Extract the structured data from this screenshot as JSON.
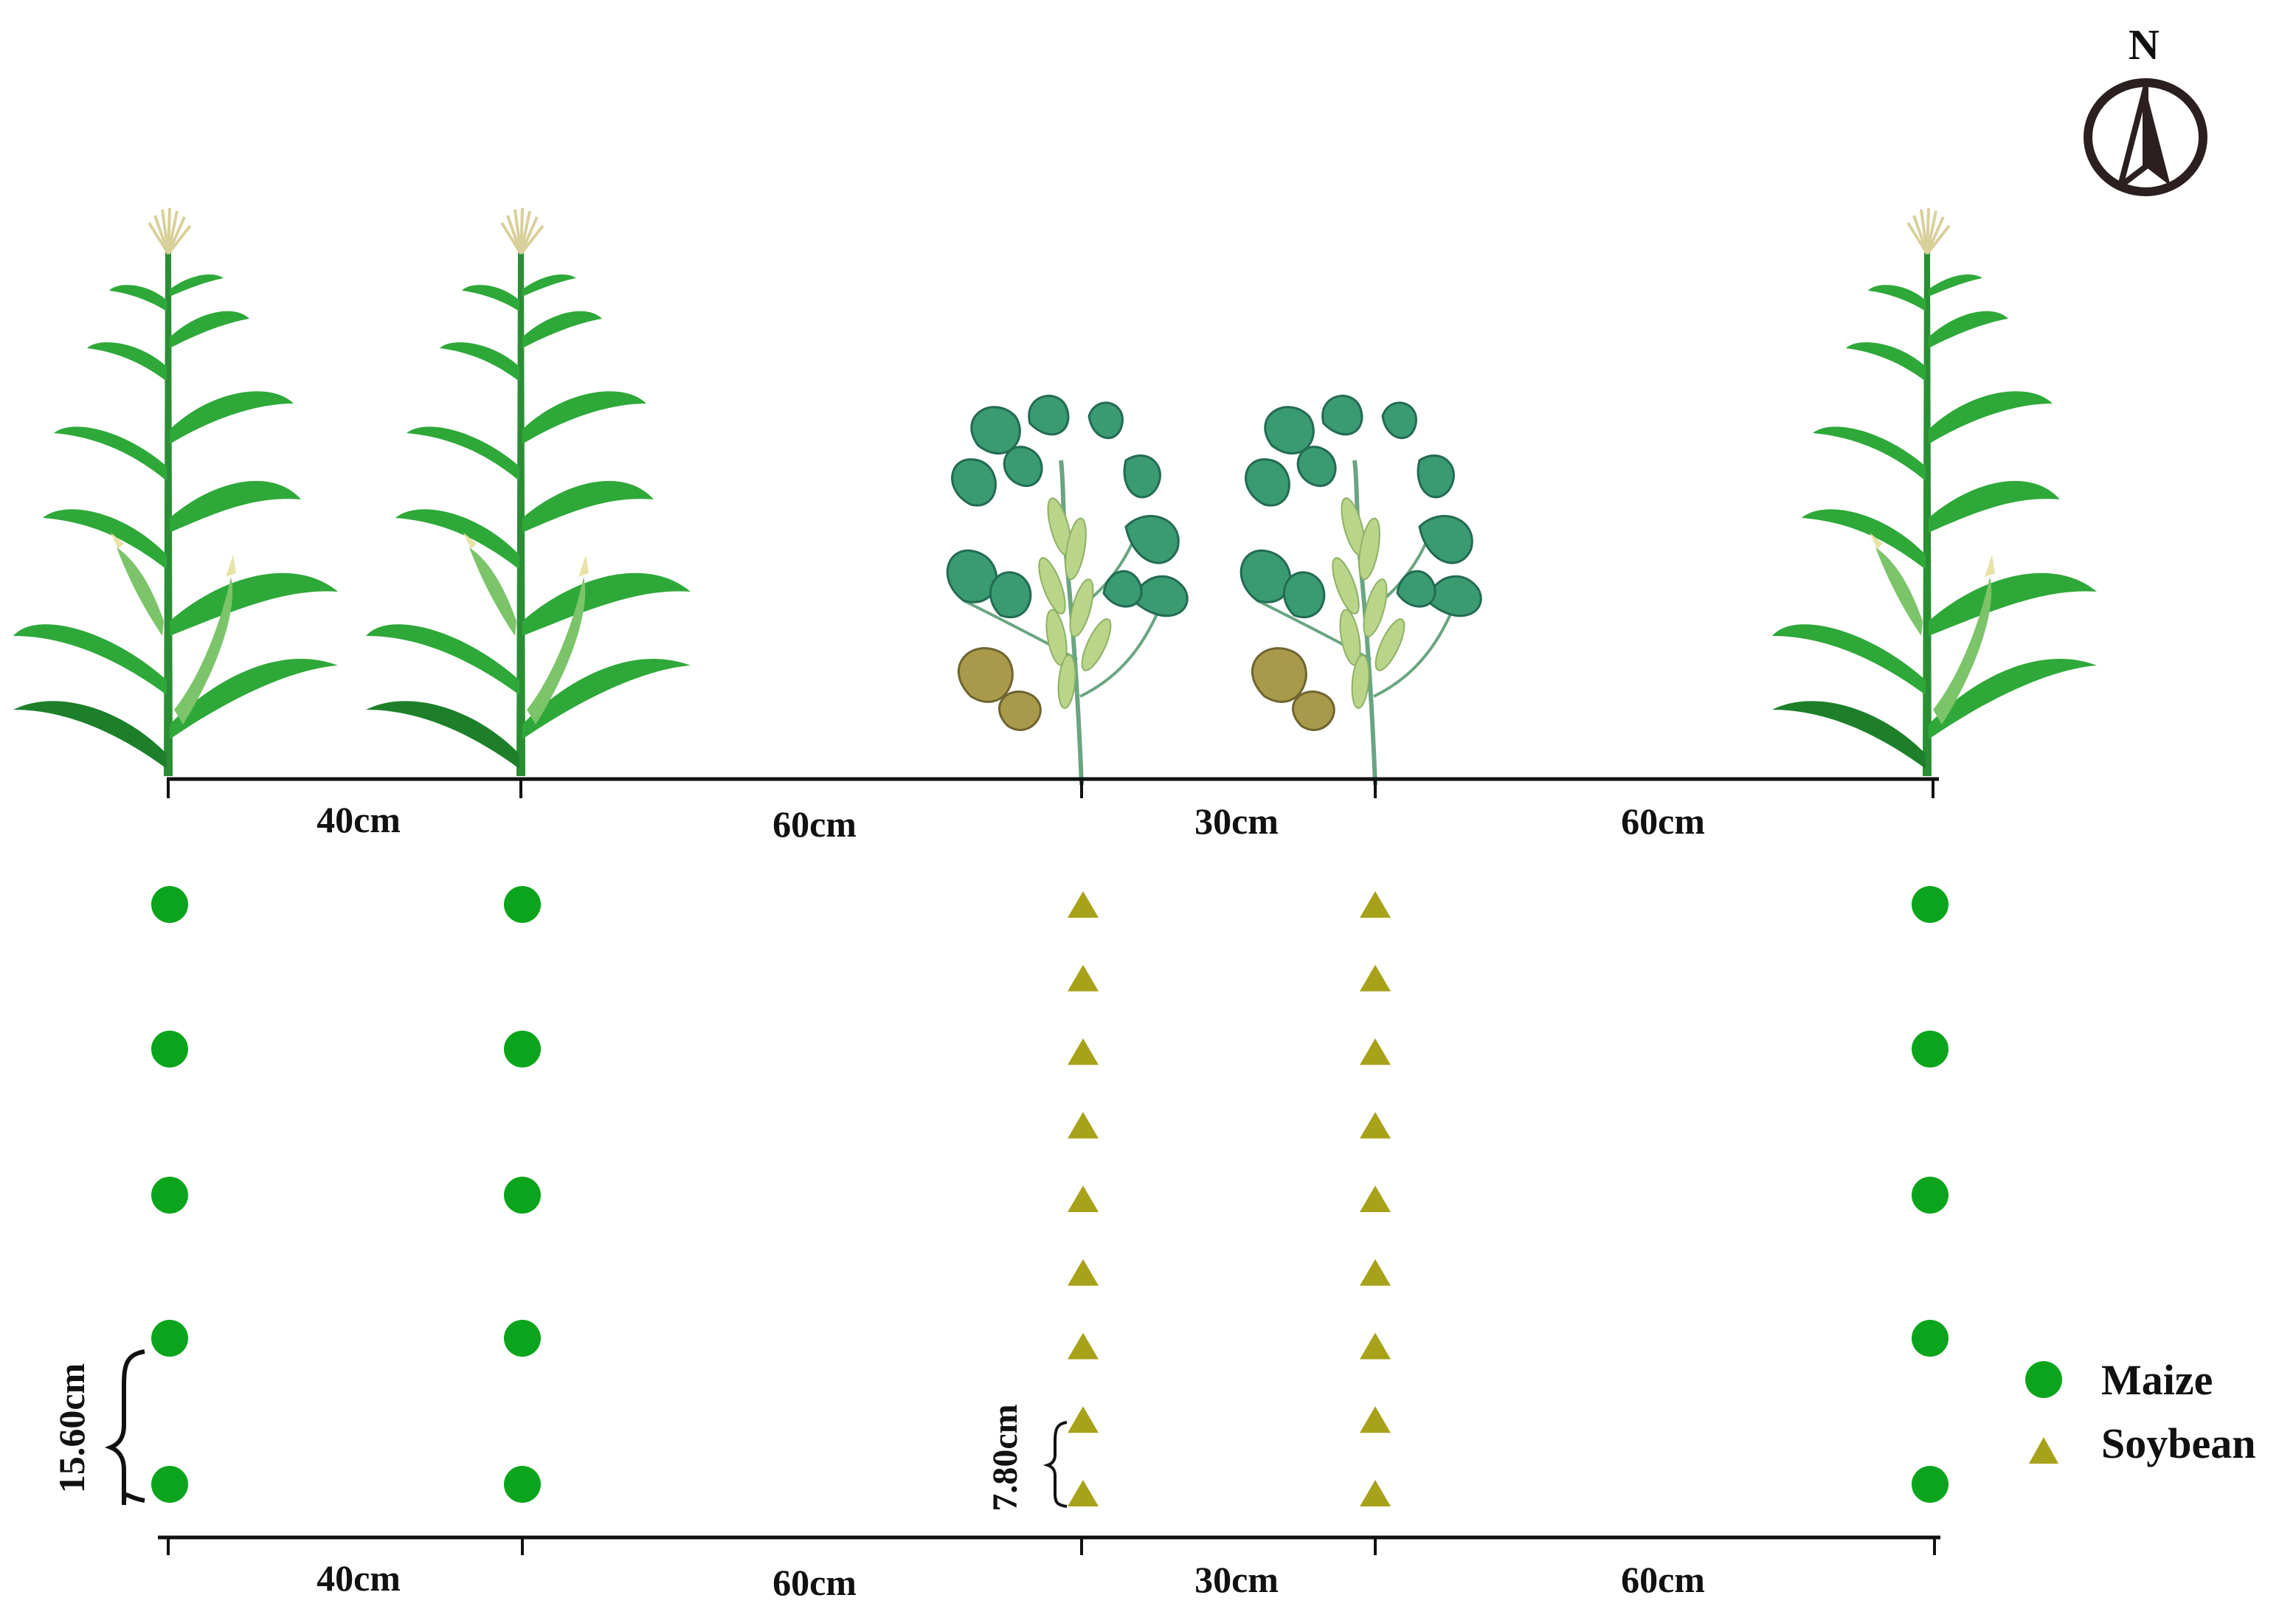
{
  "compass": {
    "label": "N",
    "icon": "north-arrow-icon"
  },
  "spacing_labels_top": [
    "40cm",
    "60cm",
    "30cm",
    "60cm"
  ],
  "spacing_labels_bottom": [
    "40cm",
    "60cm",
    "30cm",
    "60cm"
  ],
  "maize_plant_spacing": "15.60cm",
  "soybean_plant_spacing": "7.80cm",
  "legend": {
    "items": [
      {
        "label": "Maize",
        "symbol": "circle",
        "color": "#0aa51c"
      },
      {
        "label": "Soybean",
        "symbol": "triangle",
        "color": "#a8a21a"
      }
    ]
  },
  "rows": [
    {
      "crop": "maize",
      "points": 5
    },
    {
      "crop": "maize",
      "points": 5
    },
    {
      "crop": "soybean",
      "points": 9
    },
    {
      "crop": "soybean",
      "points": 9
    },
    {
      "crop": "maize",
      "points": 5
    }
  ],
  "colors": {
    "maize_leaf": "#2fa83a",
    "maize_leaf_dark": "#1d7f2a",
    "maize_ear": "#7cc46a",
    "maize_tassel": "#e8e2a8",
    "soy_leaf": "#3a9a72",
    "soy_leaf_dark": "#236b52",
    "soy_pod": "#b9d58a",
    "soy_old_leaf": "#a89a4a",
    "maize_marker": "#0aa51c",
    "soybean_marker": "#a8a21a",
    "line": "#111111",
    "compass": "#2b1f1f"
  }
}
